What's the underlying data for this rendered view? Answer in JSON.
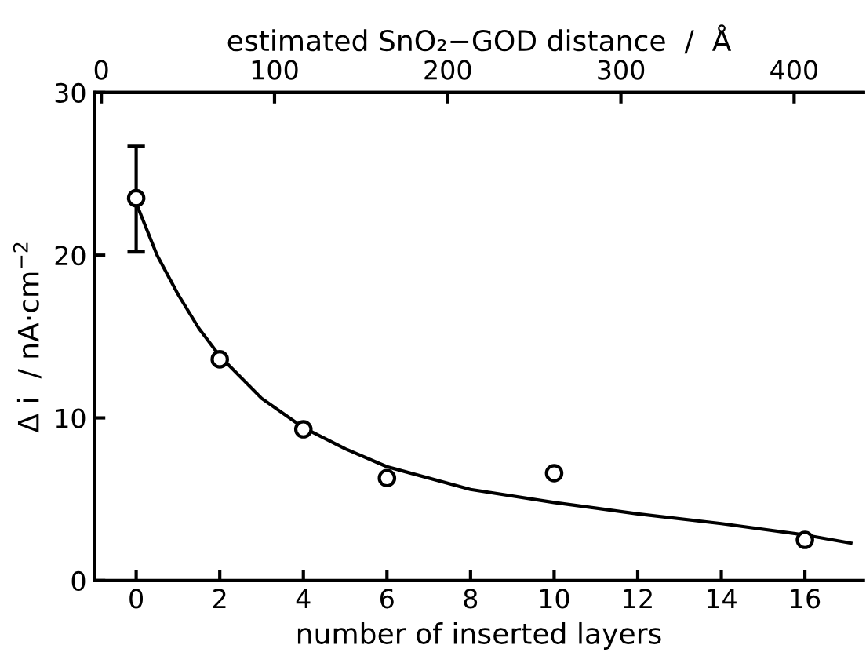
{
  "chart_data": {
    "type": "scatter",
    "xlabel": "number of inserted layers",
    "ylabel": "Δ i  ∕ nA·cm$^{−2}$",
    "x2label": "estimated SnO₂−GOD distance  ∕  Å",
    "xlim": [
      -1.0,
      17.4
    ],
    "xticks": [
      0,
      2,
      4,
      6,
      8,
      10,
      12,
      14,
      16
    ],
    "x2lim": [
      -4,
      440
    ],
    "x2ticks": [
      0,
      100,
      200,
      300,
      400
    ],
    "ylim": [
      0,
      30
    ],
    "yticks": [
      0,
      10,
      20,
      30
    ],
    "grid": false,
    "legend": false,
    "series": [
      {
        "color": "#000000",
        "marker": "circle",
        "x": [
          0,
          2,
          4,
          6,
          10,
          16
        ],
        "values": [
          23.5,
          13.6,
          9.3,
          6.3,
          6.6,
          2.5
        ],
        "errors": [
          [
            20.2,
            26.7
          ],
          null,
          null,
          null,
          null,
          null
        ]
      },
      {
        "type": "line",
        "color": "#000000",
        "marker": "none",
        "line_style": "solid",
        "x": [
          0,
          0.5,
          1,
          1.5,
          2,
          3,
          4,
          5,
          6,
          8,
          10,
          12,
          14,
          16,
          17.1
        ],
        "values": [
          23.2,
          20,
          17.6,
          15.5,
          13.8,
          11.2,
          9.4,
          8.1,
          7.0,
          5.6,
          4.8,
          4.1,
          3.5,
          2.8,
          2.3
        ]
      }
    ]
  }
}
